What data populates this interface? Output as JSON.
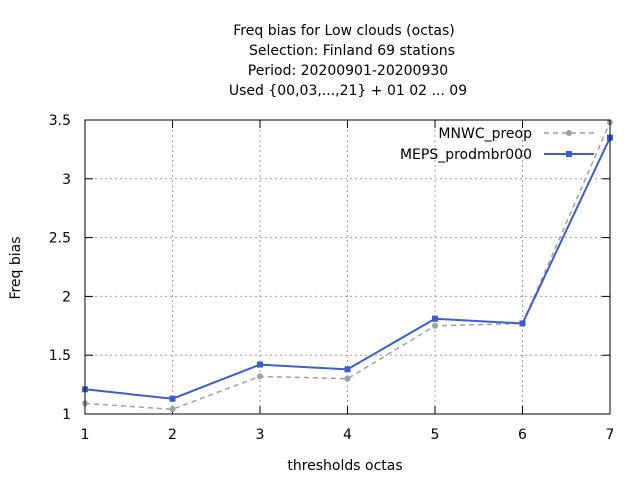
{
  "chart_data": {
    "type": "line",
    "title_lines": [
      "Freq bias  for Low clouds (octas)",
      "Selection: Finland     69 stations",
      "Period: 20200901-20200930",
      "Used {00,03,...,21} + 01 02 ... 09"
    ],
    "xlabel": "thresholds octas",
    "ylabel": "Freq bias",
    "x": [
      1,
      2,
      3,
      4,
      5,
      6,
      7
    ],
    "xlim": [
      1,
      7
    ],
    "ylim": [
      1,
      3.5
    ],
    "x_ticks": [
      "1",
      "2",
      "3",
      "4",
      "5",
      "6",
      "7"
    ],
    "y_ticks": [
      "1",
      "1.5",
      "2",
      "2.5",
      "3",
      "3.5"
    ],
    "grid": true,
    "legend_position": "top-right",
    "series": [
      {
        "name": "MNWC_preop",
        "values": [
          1.09,
          1.04,
          1.32,
          1.3,
          1.75,
          1.77,
          3.48
        ],
        "color": "#a0a0a0",
        "style": "dashed"
      },
      {
        "name": "MEPS_prodmbr000",
        "values": [
          1.21,
          1.13,
          1.42,
          1.38,
          1.81,
          1.77,
          3.35
        ],
        "color": "#3a5fcd",
        "style": "solid"
      }
    ]
  }
}
